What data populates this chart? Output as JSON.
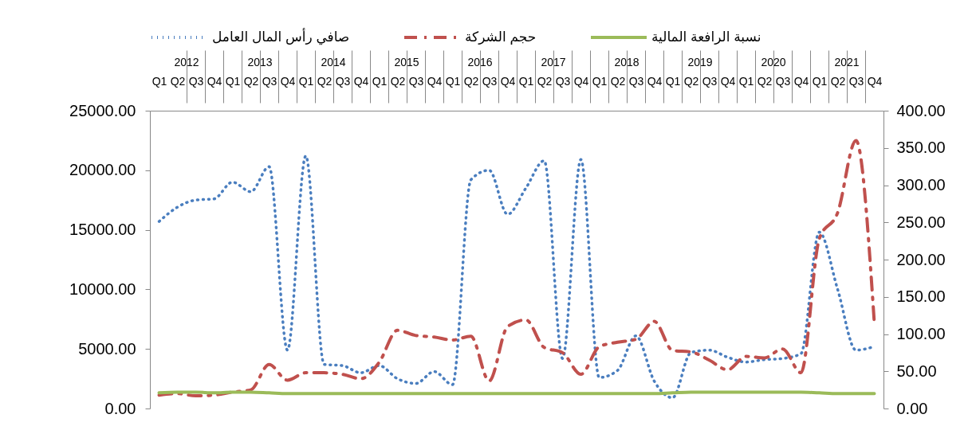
{
  "chart_data": {
    "type": "line",
    "categories": [
      "Q1",
      "Q2",
      "Q3",
      "Q4",
      "Q1",
      "Q2",
      "Q3",
      "Q4",
      "Q1",
      "Q2",
      "Q3",
      "Q4",
      "Q1",
      "Q2",
      "Q3",
      "Q4",
      "Q1",
      "Q2",
      "Q3",
      "Q4",
      "Q1",
      "Q2",
      "Q3",
      "Q4",
      "Q1",
      "Q2",
      "Q3",
      "Q4",
      "Q1",
      "Q2",
      "Q3",
      "Q4",
      "Q1",
      "Q2",
      "Q3",
      "Q4",
      "Q1",
      "Q2",
      "Q3",
      "Q4"
    ],
    "annotations": [
      "2012",
      "2013",
      "2014",
      "2015",
      "2016",
      "2017",
      "2018",
      "2019",
      "2020",
      "2021"
    ],
    "series": [
      {
        "name": "صافي رأس المال العامل",
        "color": "#4a7ebf",
        "line_style": "dotted",
        "values": [
          15700,
          16900,
          17500,
          17600,
          19000,
          18200,
          20300,
          4900,
          21200,
          3700,
          3600,
          3000,
          3600,
          2500,
          2100,
          3100,
          2000,
          19200,
          20000,
          16300,
          18500,
          20800,
          4200,
          20900,
          2600,
          3200,
          6100,
          2300,
          900,
          4700,
          4900,
          4300,
          3900,
          4100,
          4200,
          4600,
          14800,
          10000,
          4900,
          5200
        ]
      },
      {
        "name": "حجم الشركة",
        "color": "#c0504d",
        "line_style": "dashed",
        "axis": "y2",
        "values": [
          18,
          20,
          17,
          18,
          22,
          25,
          59,
          38,
          48,
          48,
          46,
          40,
          62,
          105,
          98,
          96,
          92,
          97,
          37,
          110,
          119,
          82,
          75,
          46,
          83,
          89,
          93,
          117,
          78,
          76,
          65,
          52,
          70,
          68,
          80,
          48,
          228,
          263,
          360,
          115
        ]
      },
      {
        "name": "نسبة الرافعة المالية",
        "color": "#9bbb59",
        "line_style": "solid",
        "axis": "y2",
        "values": [
          21,
          22,
          22,
          21,
          22,
          22,
          21,
          20,
          20,
          20,
          20,
          20,
          20,
          20,
          20,
          20,
          20,
          20,
          20,
          20,
          20,
          20,
          20,
          20,
          20,
          20,
          20,
          20,
          21,
          22,
          22,
          22,
          22,
          22,
          22,
          22,
          21,
          20,
          20,
          20
        ]
      }
    ],
    "ylim": [
      0,
      25000
    ],
    "yticks": [
      {
        "value": 0,
        "label": "0.00"
      },
      {
        "value": 5000,
        "label": "5000.00"
      },
      {
        "value": 10000,
        "label": "10000.00"
      },
      {
        "value": 15000,
        "label": "15000.00"
      },
      {
        "value": 20000,
        "label": "20000.00"
      },
      {
        "value": 25000,
        "label": "25000.00"
      }
    ],
    "y2lim": [
      0,
      400
    ],
    "y2ticks": [
      {
        "value": 0,
        "label": "0.00"
      },
      {
        "value": 50,
        "label": "50.00"
      },
      {
        "value": 100,
        "label": "100.00"
      },
      {
        "value": 150,
        "label": "150.00"
      },
      {
        "value": 200,
        "label": "200.00"
      },
      {
        "value": 250,
        "label": "250.00"
      },
      {
        "value": 300,
        "label": "300.00"
      },
      {
        "value": 350,
        "label": "350.00"
      },
      {
        "value": 400,
        "label": "400.00"
      }
    ],
    "grid": false,
    "legend": "top"
  }
}
